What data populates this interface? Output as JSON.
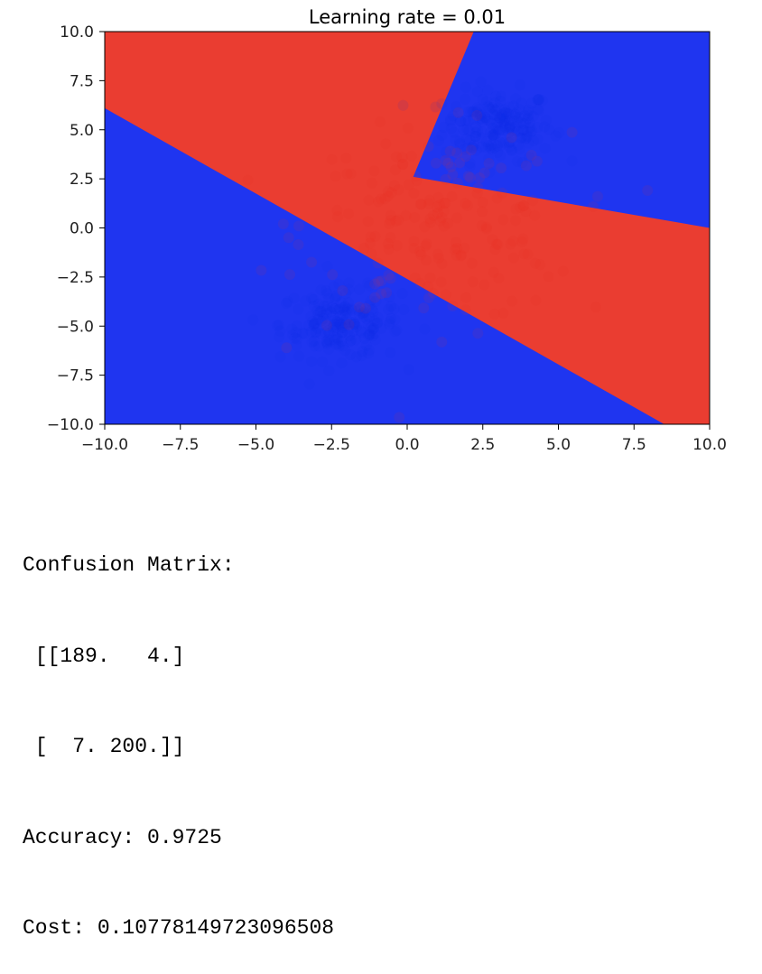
{
  "chart_data": {
    "type": "scatter",
    "title": "Learning rate = 0.01",
    "xlim": [
      -10.0,
      10.0
    ],
    "ylim": [
      -10.0,
      10.0
    ],
    "x_ticks": [
      -10.0,
      -7.5,
      -5.0,
      -2.5,
      0.0,
      2.5,
      5.0,
      7.5,
      10.0
    ],
    "y_ticks": [
      -10.0,
      -7.5,
      -5.0,
      -2.5,
      0.0,
      2.5,
      5.0,
      7.5,
      10.0
    ],
    "x_tick_labels": [
      "−10.0",
      "−7.5",
      "−5.0",
      "−2.5",
      "0.0",
      "2.5",
      "5.0",
      "7.5",
      "10.0"
    ],
    "y_tick_labels": [
      "10.0",
      "7.5",
      "5.0",
      "2.5",
      "0.0",
      "−2.5",
      "−5.0",
      "−7.5",
      "−10.0"
    ],
    "grid": false,
    "colors": {
      "class_a": "#ea3d31",
      "class_b": "#1f35f0",
      "points_a": "#e5271f",
      "points_b": "#0a2ae8"
    },
    "regions": [
      {
        "class": "class_b",
        "polygon": [
          [
            -10,
            6.1
          ],
          [
            -10,
            -10
          ],
          [
            8.5,
            -10
          ]
        ]
      },
      {
        "class": "class_b",
        "polygon": [
          [
            2.2,
            10
          ],
          [
            10,
            10
          ],
          [
            10,
            0.0
          ],
          [
            0.2,
            2.6
          ]
        ]
      }
    ],
    "clusters": [
      {
        "class": "class_b",
        "center": [
          3.0,
          5.2
        ],
        "spread": [
          0.9,
          0.9
        ],
        "count": 200
      },
      {
        "class": "class_b",
        "center": [
          -2.2,
          -4.9
        ],
        "spread": [
          1.0,
          0.9
        ],
        "count": 200
      },
      {
        "class": "class_a",
        "center": [
          1.0,
          0.0
        ],
        "spread": [
          2.2,
          2.4
        ],
        "count": 200
      }
    ]
  },
  "output": {
    "lines": [
      "Confusion Matrix:",
      " [[189.   4.]",
      " [  7. 200.]]",
      "Accuracy: 0.9725",
      "Cost: 0.10778149723096508"
    ]
  }
}
